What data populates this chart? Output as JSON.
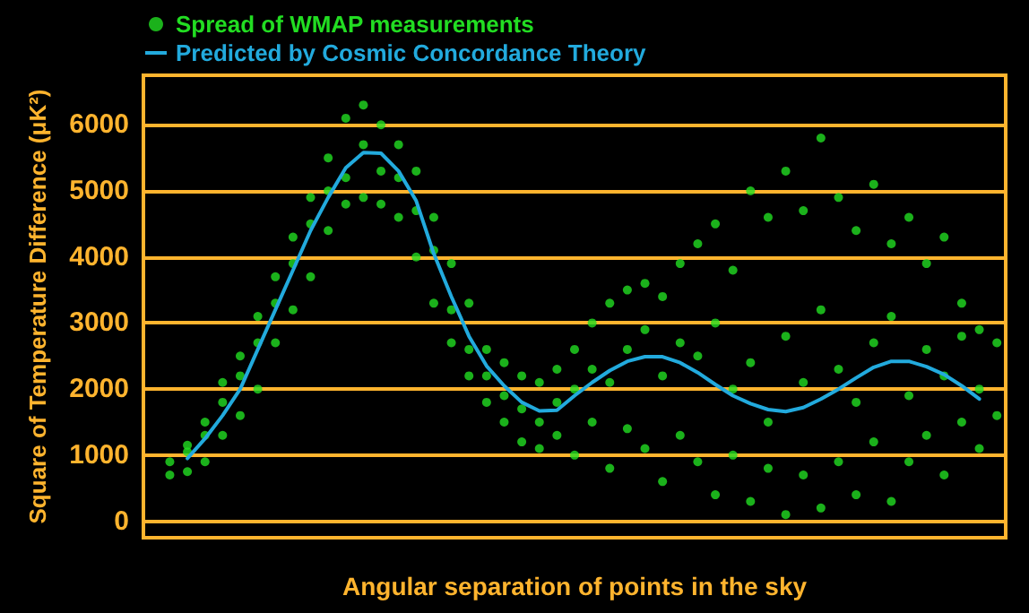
{
  "chart_data": {
    "type": "scatter",
    "ylabel": "Square of Temperature Difference (μK²)",
    "xlabel": "Angular separation of points in the sky",
    "categories": [
      null,
      null,
      null,
      null,
      null,
      null,
      null,
      null,
      null,
      null,
      null,
      null,
      null,
      null,
      null,
      null,
      null,
      null,
      null,
      null,
      null,
      null,
      null,
      null,
      null,
      null,
      null,
      null,
      null,
      null,
      null,
      null,
      null,
      null,
      null,
      null,
      null,
      null,
      null,
      null,
      null,
      null,
      null,
      null,
      null,
      null,
      null,
      null,
      null
    ],
    "ylim": [
      -250,
      6750
    ],
    "yticks": [
      0,
      1000,
      2000,
      3000,
      4000,
      5000,
      6000
    ],
    "grid": "y",
    "tick_labels": "y",
    "legend": "top left",
    "marker": "circle",
    "series": [
      {
        "name": "Spread of WMAP measurements",
        "color": "#22dd22",
        "values": [
          null,
          900,
          1150,
          1500,
          2100,
          2500,
          3100,
          3700,
          4300,
          4900,
          5500,
          6100,
          6300,
          6000,
          5700,
          5300,
          4600,
          3900,
          3300,
          2600,
          2400,
          2200,
          2100,
          2300,
          2600,
          3000,
          3300,
          3500,
          3600,
          3400,
          3900,
          4200,
          4500,
          3800,
          5000,
          4600,
          5300,
          4700,
          5800,
          4900,
          4400,
          5100,
          4200,
          4600,
          3900,
          4300,
          3300,
          2900,
          2700
        ]
      },
      {
        "color": "#22dd22",
        "values": [
          null,
          700,
          750,
          900,
          1300,
          1600,
          2000,
          2700,
          3200,
          3700,
          4400,
          4800,
          4900,
          4800,
          4600,
          4000,
          3300,
          2700,
          2200,
          1800,
          1500,
          1200,
          1100,
          1300,
          1000,
          1500,
          800,
          1400,
          1100,
          600,
          1300,
          900,
          400,
          1000,
          300,
          800,
          100,
          700,
          200,
          900,
          400,
          1200,
          300,
          900,
          1300,
          700,
          1500,
          1100,
          1600
        ]
      },
      {
        "color": "#22dd22",
        "values": [
          null,
          null,
          1050,
          1300,
          1800,
          2200,
          2700,
          3300,
          3900,
          4500,
          5000,
          5200,
          5700,
          5300,
          5200,
          4700,
          4100,
          3200,
          2600,
          2200,
          1900,
          1700,
          1500,
          1800,
          2000,
          2300,
          2100,
          2600,
          2900,
          2200,
          2700,
          2500,
          3000,
          2000,
          2400,
          1500,
          2800,
          2100,
          3200,
          2300,
          1800,
          2700,
          3100,
          1900,
          2600,
          2200,
          2800,
          2000,
          null
        ]
      },
      {
        "name": "Predicted by Cosmic Concordance Theory",
        "type": "line",
        "marker": "none",
        "color": "#22aadd",
        "values": [
          null,
          null,
          950,
          1250,
          1600,
          2000,
          2600,
          3200,
          3800,
          4400,
          4900,
          5350,
          5580,
          5570,
          5300,
          4850,
          4050,
          3400,
          2800,
          2350,
          2050,
          1800,
          1670,
          1680,
          1900,
          2100,
          2280,
          2420,
          2490,
          2490,
          2400,
          2250,
          2070,
          1900,
          1780,
          1690,
          1660,
          1720,
          1850,
          2000,
          2170,
          2330,
          2420,
          2420,
          2340,
          2220,
          2050,
          1850,
          null
        ]
      }
    ]
  }
}
